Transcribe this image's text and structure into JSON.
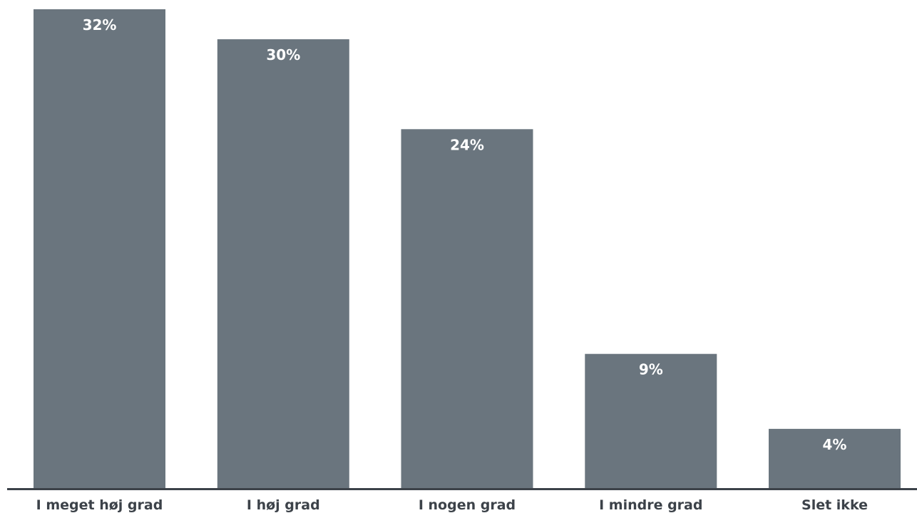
{
  "chart_data": {
    "type": "bar",
    "categories": [
      "I meget høj grad",
      "I høj grad",
      "I nogen grad",
      "I mindre grad",
      "Slet ikke"
    ],
    "values": [
      32,
      30,
      24,
      9,
      4
    ],
    "value_labels": [
      "32%",
      "30%",
      "24%",
      "9%",
      "4%"
    ],
    "unit": "%",
    "ylim": [
      0,
      32
    ],
    "grid": false,
    "legend": "none",
    "colors": {
      "bar": "#6a757e",
      "axis": "#3c4249",
      "value_label": "#ffffff",
      "category_label": "#3c4249"
    }
  }
}
